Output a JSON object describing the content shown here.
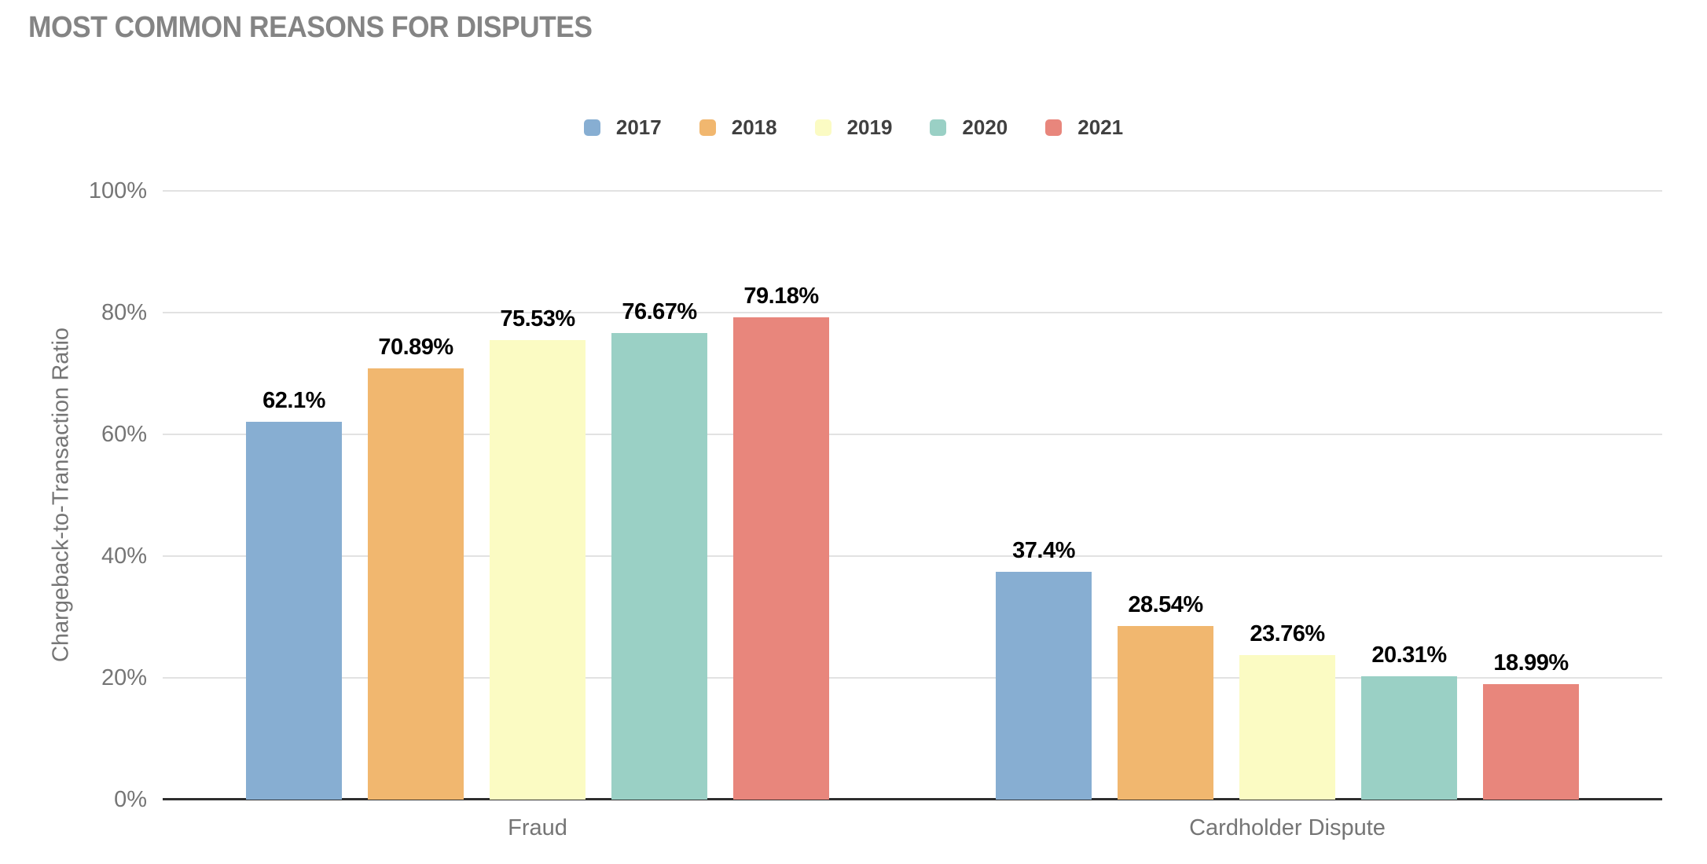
{
  "title": "MOST COMMON REASONS FOR DISPUTES",
  "chart_data": {
    "type": "bar",
    "title": "MOST COMMON REASONS FOR DISPUTES",
    "categories": [
      "Fraud",
      "Cardholder Dispute"
    ],
    "series": [
      {
        "name": "2017",
        "color": "#87aed2",
        "values": [
          62.1,
          37.4
        ],
        "labels": [
          "62.1%",
          "37.4%"
        ]
      },
      {
        "name": "2018",
        "color": "#f1b76f",
        "values": [
          70.89,
          28.54
        ],
        "labels": [
          "70.89%",
          "28.54%"
        ]
      },
      {
        "name": "2019",
        "color": "#fbfbc3",
        "values": [
          75.53,
          23.76
        ],
        "labels": [
          "75.53%",
          "23.76%"
        ]
      },
      {
        "name": "2020",
        "color": "#9ad0c5",
        "values": [
          76.67,
          20.31
        ],
        "labels": [
          "76.67%",
          "20.31%"
        ]
      },
      {
        "name": "2021",
        "color": "#e8867c",
        "values": [
          79.18,
          18.99
        ],
        "labels": [
          "79.18%",
          "18.99%"
        ]
      }
    ],
    "xlabel": "",
    "ylabel": "Chargeback-to-Transaction Ratio",
    "ylim": [
      0,
      100
    ],
    "yticks": [
      0,
      20,
      40,
      60,
      80,
      100
    ],
    "ytick_labels": [
      "0%",
      "20%",
      "40%",
      "60%",
      "80%",
      "100%"
    ],
    "grid": true,
    "legend_position": "top",
    "colors": {
      "title_text": "#848484",
      "axis_text": "#757575",
      "legend_text": "#404040",
      "value_label_text": "#000000",
      "gridline": "#e2e2e2",
      "axis_line": "#2e2e2e",
      "background": "#ffffff"
    }
  }
}
